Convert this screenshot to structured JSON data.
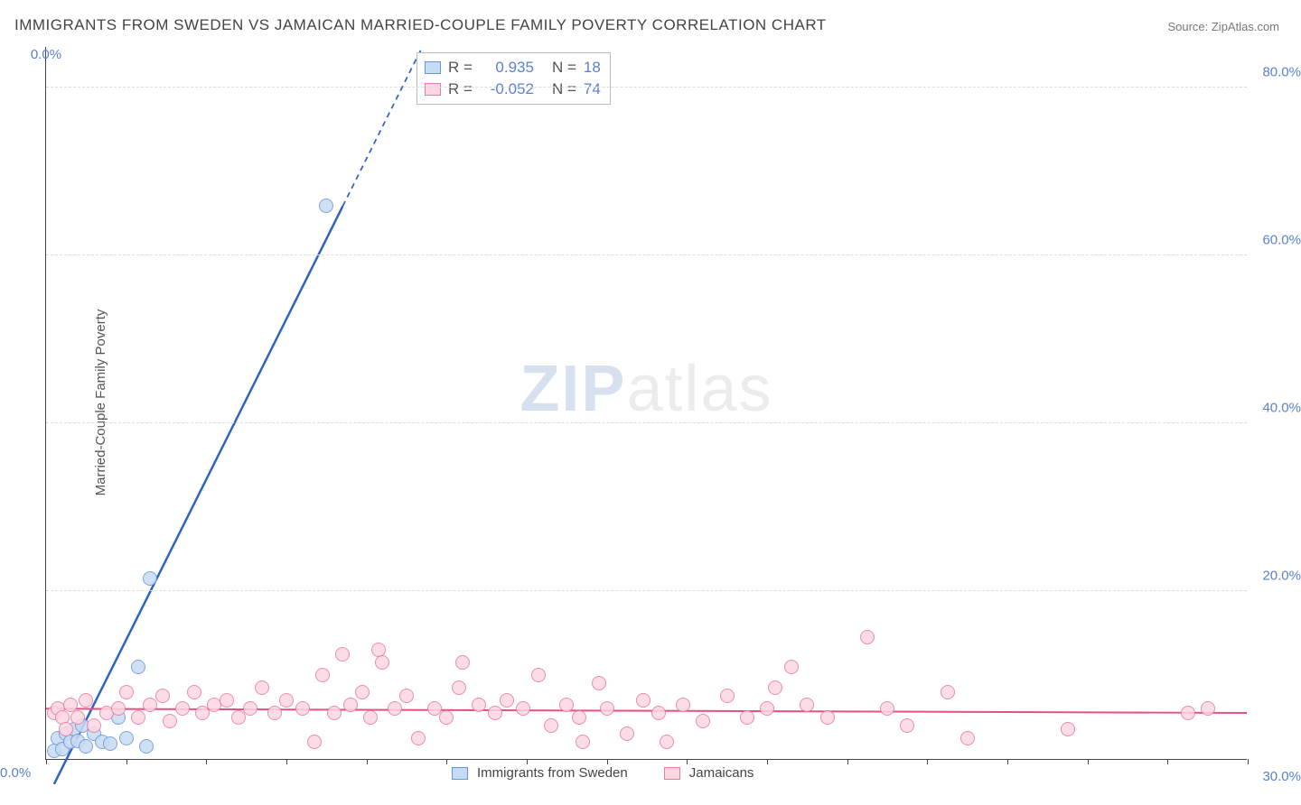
{
  "title": "IMMIGRANTS FROM SWEDEN VS JAMAICAN MARRIED-COUPLE FAMILY POVERTY CORRELATION CHART",
  "source": "Source: ZipAtlas.com",
  "ylabel": "Married-Couple Family Poverty",
  "watermark": {
    "text_a": "ZIP",
    "text_b": "atlas",
    "color_a": "#8fa7d1",
    "color_b": "#c9c9c9",
    "opacity": 0.35
  },
  "chart": {
    "type": "scatter",
    "background_color": "#ffffff",
    "grid_color": "#dddddd",
    "xlim": [
      0,
      30
    ],
    "ylim": [
      0,
      85
    ],
    "x_ticks": [
      0,
      10,
      20,
      30
    ],
    "x_tick_labels": [
      "0.0%",
      "",
      "",
      "30.0%"
    ],
    "x_minor_step": 2,
    "y_ticks": [
      0,
      20,
      40,
      60,
      80
    ],
    "y_tick_labels": [
      "0.0%",
      "20.0%",
      "40.0%",
      "60.0%",
      "80.0%"
    ],
    "y_tick_color": "#5b7fd1",
    "x_tick_color": "#5b7fd1",
    "marker_radius": 8,
    "marker_border_width": 1.2,
    "series": [
      {
        "id": "sweden",
        "label": "Immigrants from Sweden",
        "fill": "#c7dbf4",
        "stroke": "#6a95d8",
        "line_color": "#2f63c0",
        "line_width": 2.5,
        "r_value": "0.935",
        "n_value": "18",
        "trend": {
          "x1": 0.2,
          "y1": -3,
          "x2": 9.4,
          "y2": 85,
          "dash_from_y": 66
        },
        "points": [
          [
            0.2,
            1.0
          ],
          [
            0.3,
            2.5
          ],
          [
            0.4,
            1.2
          ],
          [
            0.5,
            3.0
          ],
          [
            0.6,
            2.0
          ],
          [
            0.7,
            3.5
          ],
          [
            0.8,
            2.2
          ],
          [
            0.9,
            4.0
          ],
          [
            1.0,
            1.5
          ],
          [
            1.2,
            3.0
          ],
          [
            1.4,
            2.0
          ],
          [
            1.6,
            1.8
          ],
          [
            1.8,
            5.0
          ],
          [
            2.0,
            2.5
          ],
          [
            2.3,
            11.0
          ],
          [
            2.5,
            1.5
          ],
          [
            2.6,
            21.5
          ],
          [
            7.0,
            66.0
          ]
        ]
      },
      {
        "id": "jamaican",
        "label": "Jamaicans",
        "fill": "#fcd7e2",
        "stroke": "#e87a9d",
        "line_color": "#e64e86",
        "line_width": 2,
        "r_value": "-0.052",
        "n_value": "74",
        "trend": {
          "x1": 0,
          "y1": 6.0,
          "x2": 30,
          "y2": 5.5
        },
        "points": [
          [
            0.2,
            5.5
          ],
          [
            0.3,
            6.0
          ],
          [
            0.4,
            5.0
          ],
          [
            0.5,
            3.5
          ],
          [
            0.6,
            6.5
          ],
          [
            0.8,
            5.0
          ],
          [
            1.0,
            7.0
          ],
          [
            1.2,
            4.0
          ],
          [
            1.5,
            5.5
          ],
          [
            1.8,
            6.0
          ],
          [
            2.0,
            8.0
          ],
          [
            2.3,
            5.0
          ],
          [
            2.6,
            6.5
          ],
          [
            2.9,
            7.5
          ],
          [
            3.1,
            4.5
          ],
          [
            3.4,
            6.0
          ],
          [
            3.7,
            8.0
          ],
          [
            3.9,
            5.5
          ],
          [
            4.2,
            6.5
          ],
          [
            4.5,
            7.0
          ],
          [
            4.8,
            5.0
          ],
          [
            5.1,
            6.0
          ],
          [
            5.4,
            8.5
          ],
          [
            5.7,
            5.5
          ],
          [
            6.0,
            7.0
          ],
          [
            6.4,
            6.0
          ],
          [
            6.7,
            2.0
          ],
          [
            6.9,
            10.0
          ],
          [
            7.2,
            5.5
          ],
          [
            7.4,
            12.5
          ],
          [
            7.6,
            6.5
          ],
          [
            7.9,
            8.0
          ],
          [
            8.1,
            5.0
          ],
          [
            8.3,
            13.0
          ],
          [
            8.4,
            11.5
          ],
          [
            8.7,
            6.0
          ],
          [
            9.0,
            7.5
          ],
          [
            9.3,
            2.5
          ],
          [
            9.7,
            6.0
          ],
          [
            10.0,
            5.0
          ],
          [
            10.3,
            8.5
          ],
          [
            10.4,
            11.5
          ],
          [
            10.8,
            6.5
          ],
          [
            11.2,
            5.5
          ],
          [
            11.5,
            7.0
          ],
          [
            11.9,
            6.0
          ],
          [
            12.3,
            10.0
          ],
          [
            12.6,
            4.0
          ],
          [
            13.0,
            6.5
          ],
          [
            13.3,
            5.0
          ],
          [
            13.4,
            2.0
          ],
          [
            13.8,
            9.0
          ],
          [
            14.0,
            6.0
          ],
          [
            14.5,
            3.0
          ],
          [
            14.9,
            7.0
          ],
          [
            15.3,
            5.5
          ],
          [
            15.5,
            2.0
          ],
          [
            15.9,
            6.5
          ],
          [
            16.4,
            4.5
          ],
          [
            17.0,
            7.5
          ],
          [
            17.5,
            5.0
          ],
          [
            18.0,
            6.0
          ],
          [
            18.2,
            8.5
          ],
          [
            18.6,
            11.0
          ],
          [
            19.0,
            6.5
          ],
          [
            19.5,
            5.0
          ],
          [
            20.5,
            14.5
          ],
          [
            21.0,
            6.0
          ],
          [
            21.5,
            4.0
          ],
          [
            22.5,
            8.0
          ],
          [
            23.0,
            2.5
          ],
          [
            25.5,
            3.5
          ],
          [
            28.5,
            5.5
          ],
          [
            29.0,
            6.0
          ]
        ]
      }
    ],
    "legend_bottom": [
      {
        "label": "Immigrants from Sweden",
        "fill": "#c7dbf4",
        "stroke": "#6a95d8"
      },
      {
        "label": "Jamaicans",
        "fill": "#fcd7e2",
        "stroke": "#e87a9d"
      }
    ]
  }
}
